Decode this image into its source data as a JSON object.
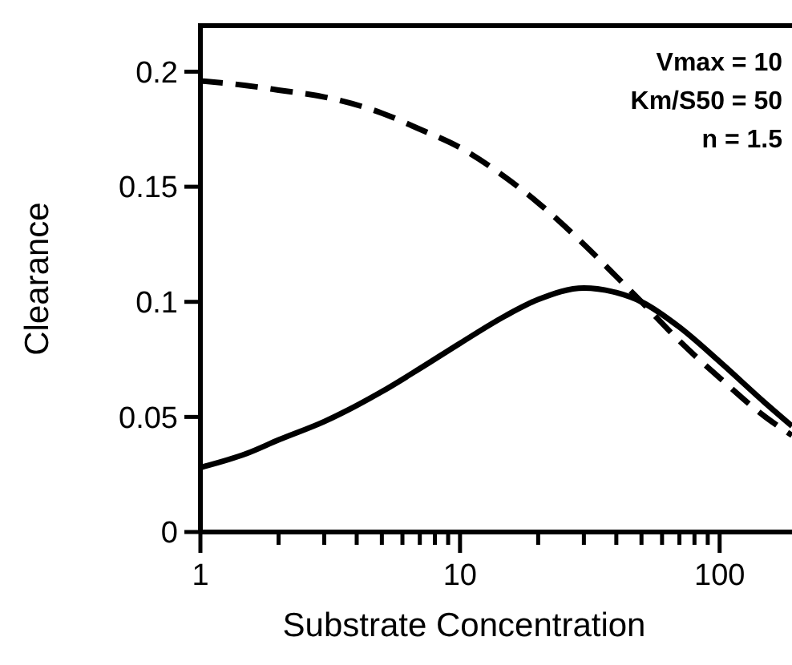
{
  "chart_data": {
    "type": "line",
    "xlabel": "Substrate Concentration",
    "ylabel": "Clearance",
    "log": "x",
    "x": [
      1,
      1.5,
      2,
      3,
      5,
      7,
      10,
      15,
      20,
      30,
      40,
      50,
      70,
      100,
      150,
      190
    ],
    "series": [
      {
        "color": "#000000",
        "line_style": "dashed",
        "values": [
          0.196,
          0.194,
          0.192,
          0.189,
          0.182,
          0.175,
          0.167,
          0.154,
          0.143,
          0.125,
          0.111,
          0.1,
          0.083,
          0.067,
          0.05,
          0.042
        ]
      },
      {
        "color": "#000000",
        "line_style": "solid",
        "values": [
          0.028,
          0.034,
          0.04,
          0.048,
          0.061,
          0.071,
          0.082,
          0.094,
          0.101,
          0.106,
          0.104,
          0.1,
          0.089,
          0.074,
          0.056,
          0.046
        ]
      }
    ],
    "xlim": [
      1,
      190
    ],
    "ylim": [
      0,
      0.22
    ],
    "xticks": [
      1,
      {
        "value": 2,
        "label": null
      },
      {
        "value": 3,
        "label": null
      },
      {
        "value": 4,
        "label": null
      },
      {
        "value": 5,
        "label": null
      },
      {
        "value": 6,
        "label": null
      },
      {
        "value": 7,
        "label": null
      },
      {
        "value": 8,
        "label": null
      },
      {
        "value": 9,
        "label": null
      },
      10,
      {
        "value": 20,
        "label": null
      },
      {
        "value": 30,
        "label": null
      },
      {
        "value": 40,
        "label": null
      },
      {
        "value": 50,
        "label": null
      },
      {
        "value": 60,
        "label": null
      },
      {
        "value": 70,
        "label": null
      },
      {
        "value": 80,
        "label": null
      },
      {
        "value": 90,
        "label": null
      },
      100
    ],
    "yticks": [
      0,
      0.05,
      0.1,
      0.15,
      0.2
    ],
    "annotations": [
      "Vmax = 10",
      "Km/S50 = 50",
      "n = 1.5"
    ]
  }
}
